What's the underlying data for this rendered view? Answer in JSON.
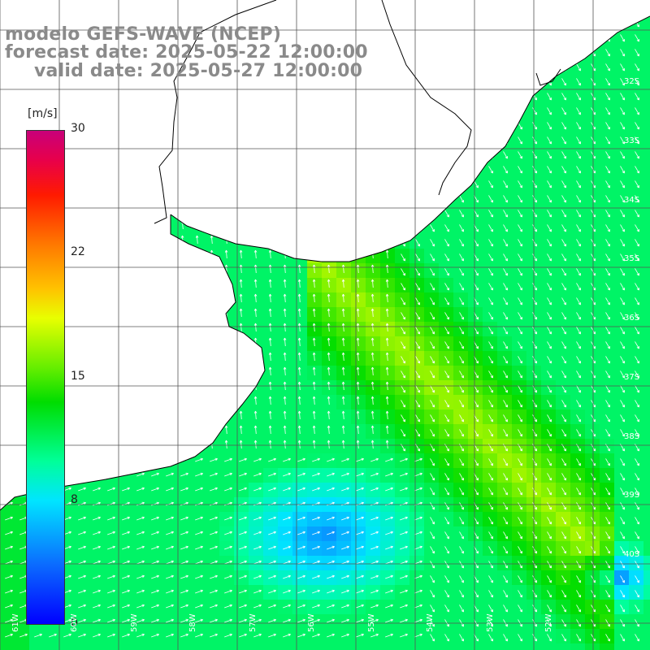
{
  "title": {
    "line1": "modelo GEFS-WAVE (NCEP)",
    "line2": "forecast date: 2025-05-22 12:00:00",
    "line3": "valid date: 2025-05-27 12:00:00"
  },
  "colorbar": {
    "unit": "[m/s]",
    "ticks": [
      "30",
      "22",
      "15",
      "8",
      "0"
    ],
    "min": 0,
    "max": 30
  },
  "lat_labels": [
    "32S",
    "33S",
    "34S",
    "35S",
    "36S",
    "37S",
    "38S",
    "39S",
    "40S"
  ],
  "lon_labels": [
    "61W",
    "60W",
    "59W",
    "58W",
    "57W",
    "56W",
    "55W",
    "54W",
    "53W",
    "52W"
  ],
  "colors": {
    "grid": "#555555",
    "coast": "#000000",
    "arrow": "#ffffff",
    "title": "#8a8a8a"
  }
}
